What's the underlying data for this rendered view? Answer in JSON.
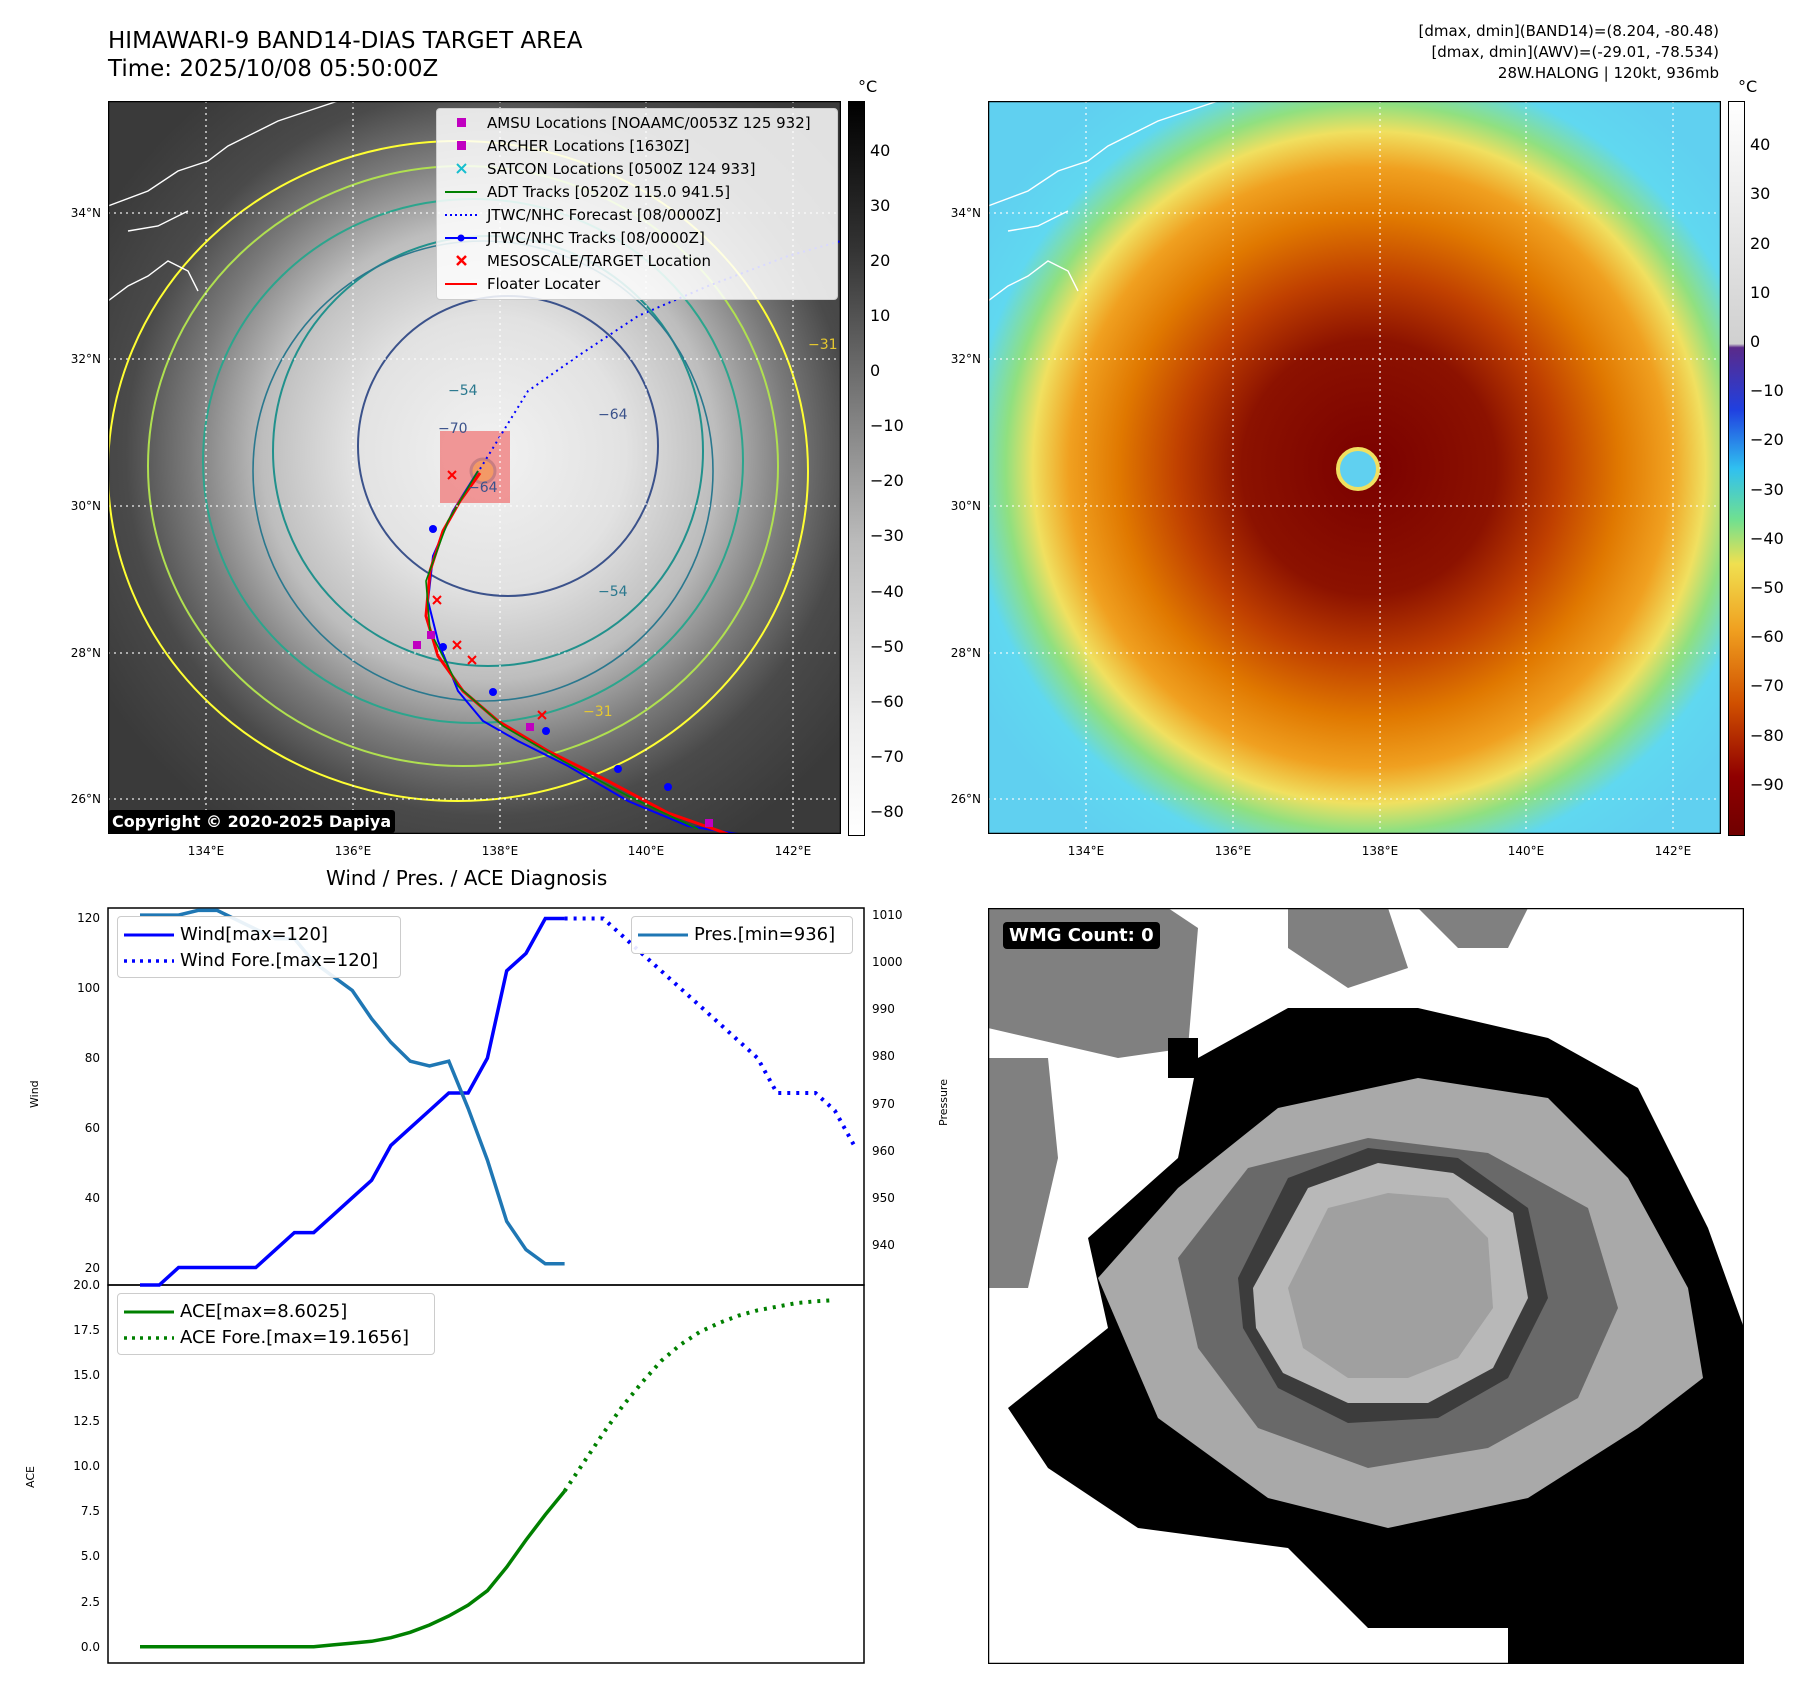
{
  "header": {
    "title_line1": "HIMAWARI-9 BAND14-DIAS TARGET AREA",
    "title_line2": "Time: 2025/10/08 05:50:00Z",
    "info_line1": "[dmax, dmin](BAND14)=(8.204, -80.48)",
    "info_line2": "[dmax, dmin](AWV)=(-29.01, -78.534)",
    "info_line3": "28W.HALONG | 120kt, 936mb"
  },
  "map_axes": {
    "lat_labels": [
      "34°N",
      "32°N",
      "30°N",
      "28°N",
      "26°N"
    ],
    "lon_labels": [
      "134°E",
      "136°E",
      "138°E",
      "140°E",
      "142°E"
    ]
  },
  "ir_map": {
    "colorbar_unit": "°C",
    "colorbar_ticks": [
      "40",
      "30",
      "20",
      "10",
      "0",
      "−10",
      "−20",
      "−30",
      "−40",
      "−50",
      "−60",
      "−70",
      "−80"
    ],
    "contour_labels": [
      "−31",
      "−54",
      "−64",
      "−54",
      "−64",
      "−31",
      "−70"
    ],
    "copyright": "Copyright © 2020-2025 Dapiya",
    "legend": [
      {
        "label": "AMSU Locations [NOAAMC/0053Z 125 932]",
        "color": "#c000c0",
        "marker": "square"
      },
      {
        "label": "ARCHER Locations [1630Z]",
        "color": "#c000c0",
        "marker": "square"
      },
      {
        "label": "SATCON Locations [0500Z 124 933]",
        "color": "#17becf",
        "marker": "x"
      },
      {
        "label": "ADT Tracks [0520Z 115.0 941.5]",
        "color": "#008000",
        "marker": "line"
      },
      {
        "label": "JTWC/NHC Forecast [08/0000Z]",
        "color": "#0000ff",
        "marker": "dotted"
      },
      {
        "label": "JTWC/NHC Tracks [08/0000Z]",
        "color": "#0000ff",
        "marker": "line-dot"
      },
      {
        "label": "MESOSCALE/TARGET Location",
        "color": "#ff0000",
        "marker": "x"
      },
      {
        "label": "Floater Locater",
        "color": "#ff0000",
        "marker": "line"
      }
    ]
  },
  "awv_map": {
    "colorbar_unit": "°C",
    "colorbar_ticks": [
      "40",
      "30",
      "20",
      "10",
      "0",
      "−10",
      "−20",
      "−30",
      "−40",
      "−50",
      "−60",
      "−70",
      "−80",
      "−90"
    ]
  },
  "diagnosis": {
    "title": "Wind / Pres. / ACE Diagnosis",
    "wind_ylabel": "Wind",
    "pres_ylabel": "Pressure",
    "ace_ylabel": "ACE",
    "wind_legend": [
      "Wind[max=120]",
      "Wind Fore.[max=120]"
    ],
    "pres_legend": [
      "Pres.[min=936]"
    ],
    "ace_legend": [
      "ACE[max=8.6025]",
      "ACE Fore.[max=19.1656]"
    ],
    "wind_ticks": [
      "120",
      "100",
      "80",
      "60",
      "40",
      "20"
    ],
    "pres_ticks": [
      "1010",
      "1000",
      "990",
      "980",
      "970",
      "960",
      "950",
      "940"
    ],
    "ace_ticks": [
      "20.0",
      "17.5",
      "15.0",
      "12.5",
      "10.0",
      "7.5",
      "5.0",
      "2.5",
      "0.0"
    ]
  },
  "wmg": {
    "label": "WMG Count: 0"
  },
  "chart_data": [
    {
      "type": "line",
      "title": "Wind / Pres. / ACE Diagnosis",
      "ylabel": "Wind",
      "ylim": [
        15,
        123
      ],
      "series": [
        {
          "name": "Wind[max=120]",
          "color": "#0000ff",
          "style": "solid",
          "values": [
            15,
            15,
            20,
            20,
            20,
            20,
            20,
            25,
            30,
            30,
            35,
            40,
            45,
            55,
            60,
            65,
            70,
            70,
            80,
            105,
            110,
            120,
            120
          ]
        },
        {
          "name": "Wind Fore.[max=120]",
          "color": "#0000ff",
          "style": "dotted",
          "values": [
            120,
            120,
            120,
            115,
            110,
            105,
            100,
            95,
            90,
            85,
            80,
            70,
            70,
            70,
            65,
            55
          ]
        }
      ]
    },
    {
      "type": "line",
      "ylabel": "Pressure",
      "ylim": [
        931.5,
        1011.5
      ],
      "series": [
        {
          "name": "Pres.[min=936]",
          "color": "#1f77b4",
          "style": "solid",
          "values": [
            1010,
            1010,
            1010,
            1011,
            1011,
            1009,
            1007,
            1005,
            1005,
            1000,
            997,
            994,
            988,
            983,
            979,
            978,
            979,
            969,
            958,
            945,
            939,
            936,
            936
          ]
        }
      ]
    },
    {
      "type": "line",
      "ylabel": "ACE",
      "ylim": [
        -0.9,
        20.0
      ],
      "series": [
        {
          "name": "ACE[max=8.6025]",
          "color": "#008000",
          "style": "solid",
          "values": [
            0,
            0,
            0,
            0,
            0,
            0,
            0,
            0,
            0,
            0,
            0.1,
            0.2,
            0.3,
            0.5,
            0.8,
            1.2,
            1.7,
            2.3,
            3.1,
            4.4,
            5.9,
            7.3,
            8.6025
          ]
        },
        {
          "name": "ACE Fore.[max=19.1656]",
          "color": "#008000",
          "style": "dotted",
          "values": [
            8.6025,
            10.2,
            11.8,
            13.3,
            14.6,
            15.8,
            16.7,
            17.4,
            17.9,
            18.3,
            18.6,
            18.8,
            19.0,
            19.1,
            19.1656
          ]
        }
      ]
    }
  ]
}
